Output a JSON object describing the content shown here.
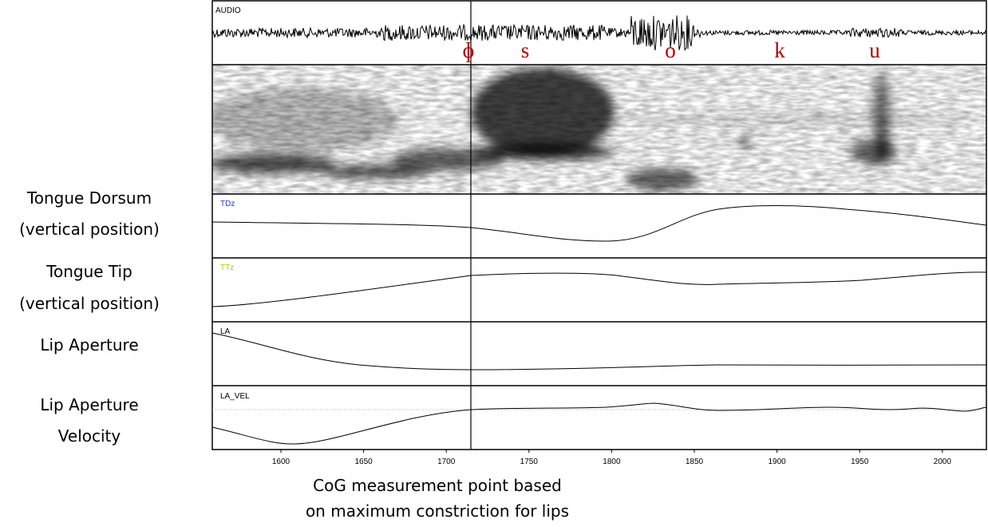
{
  "panel_labels": [
    "AUDIO",
    "TDz",
    "TTz",
    "LA",
    "LA_VEL"
  ],
  "phonemes": [
    "ɸ",
    "s",
    "o",
    "k",
    "u"
  ],
  "side_labels": [
    [
      "Tongue Dorsum",
      "(vertical position)"
    ],
    [
      "Tongue Tip",
      "(vertical position)"
    ],
    [
      "Lip Aperture"
    ],
    [
      "Lip Aperture",
      "Velocity"
    ]
  ],
  "x_axis": {
    "ticks": [
      1600,
      1650,
      1700,
      1750,
      1800,
      1850,
      1900,
      1950,
      2000
    ]
  },
  "caption": [
    "CoG measurement point based",
    "on maximum constriction for lips"
  ]
}
